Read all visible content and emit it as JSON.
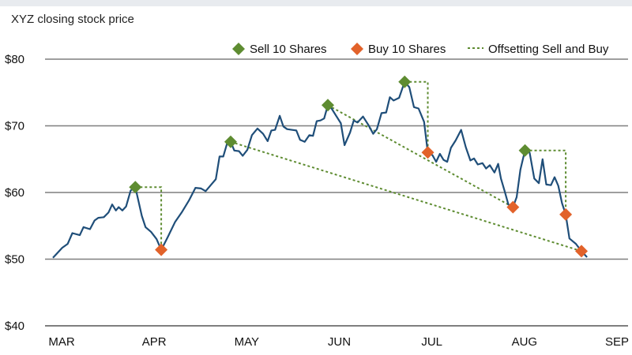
{
  "chart_data": {
    "type": "line",
    "title": "XYZ closing stock price",
    "xlabel": "",
    "ylabel": "",
    "ylim": [
      40,
      80
    ],
    "y_ticks": [
      40,
      50,
      60,
      70,
      80
    ],
    "y_tick_labels": [
      "$40",
      "$50",
      "$60",
      "$70",
      "$80"
    ],
    "x_range": [
      0,
      6
    ],
    "month_ticks": [
      {
        "label": "MAR",
        "x": 0
      },
      {
        "label": "APR",
        "x": 1
      },
      {
        "label": "MAY",
        "x": 2
      },
      {
        "label": "JUN",
        "x": 3
      },
      {
        "label": "JUL",
        "x": 4
      },
      {
        "label": "AUG",
        "x": 5
      },
      {
        "label": "SEP",
        "x": 6
      }
    ],
    "grid": true,
    "legend_position": "top-right",
    "colors": {
      "price": "#1f4e79",
      "sell": "#5e8c31",
      "buy": "#e2622a",
      "offset": "#5e8c31",
      "grid": "#7f7f7f",
      "topbar": "#e8ebef"
    },
    "legend": [
      {
        "key": "sell",
        "label": "Sell 10 Shares",
        "marker": "diamond"
      },
      {
        "key": "buy",
        "label": "Buy 10 Shares",
        "marker": "diamond"
      },
      {
        "key": "offset",
        "label": "Offsetting Sell and Buy",
        "marker": "dashed-line"
      }
    ],
    "series": [
      {
        "name": "XYZ closing stock price",
        "points": [
          [
            0.0,
            50.2
          ],
          [
            0.04,
            50.8
          ],
          [
            0.1,
            51.7
          ],
          [
            0.16,
            52.3
          ],
          [
            0.21,
            53.9
          ],
          [
            0.29,
            53.6
          ],
          [
            0.33,
            54.8
          ],
          [
            0.4,
            54.5
          ],
          [
            0.45,
            55.8
          ],
          [
            0.49,
            56.2
          ],
          [
            0.55,
            56.3
          ],
          [
            0.6,
            57.0
          ],
          [
            0.64,
            58.2
          ],
          [
            0.68,
            57.3
          ],
          [
            0.71,
            57.8
          ],
          [
            0.75,
            57.3
          ],
          [
            0.79,
            57.9
          ],
          [
            0.84,
            60.3
          ],
          [
            0.89,
            60.8
          ],
          [
            0.96,
            56.5
          ],
          [
            1.0,
            54.8
          ],
          [
            1.06,
            54.1
          ],
          [
            1.12,
            53.0
          ],
          [
            1.17,
            51.4
          ],
          [
            1.24,
            53.3
          ],
          [
            1.32,
            55.6
          ],
          [
            1.39,
            57.0
          ],
          [
            1.47,
            58.8
          ],
          [
            1.54,
            60.7
          ],
          [
            1.6,
            60.6
          ],
          [
            1.65,
            60.2
          ],
          [
            1.71,
            61.2
          ],
          [
            1.76,
            62.0
          ],
          [
            1.8,
            65.4
          ],
          [
            1.84,
            65.4
          ],
          [
            1.88,
            67.3
          ],
          [
            1.92,
            67.6
          ],
          [
            1.96,
            66.3
          ],
          [
            2.01,
            66.2
          ],
          [
            2.05,
            65.5
          ],
          [
            2.1,
            66.4
          ],
          [
            2.15,
            68.6
          ],
          [
            2.21,
            69.6
          ],
          [
            2.27,
            68.8
          ],
          [
            2.32,
            67.7
          ],
          [
            2.36,
            69.3
          ],
          [
            2.4,
            69.4
          ],
          [
            2.45,
            71.5
          ],
          [
            2.49,
            69.9
          ],
          [
            2.53,
            69.5
          ],
          [
            2.58,
            69.4
          ],
          [
            2.63,
            69.3
          ],
          [
            2.67,
            67.9
          ],
          [
            2.72,
            67.6
          ],
          [
            2.77,
            68.6
          ],
          [
            2.81,
            68.5
          ],
          [
            2.85,
            70.7
          ],
          [
            2.89,
            70.8
          ],
          [
            2.93,
            71.1
          ],
          [
            2.97,
            73.1
          ],
          [
            3.01,
            72.6
          ],
          [
            3.06,
            71.5
          ],
          [
            3.11,
            70.4
          ],
          [
            3.15,
            67.1
          ],
          [
            3.21,
            69.0
          ],
          [
            3.25,
            70.8
          ],
          [
            3.29,
            70.5
          ],
          [
            3.35,
            71.4
          ],
          [
            3.41,
            70.1
          ],
          [
            3.46,
            68.8
          ],
          [
            3.5,
            69.5
          ],
          [
            3.55,
            71.9
          ],
          [
            3.6,
            72.0
          ],
          [
            3.64,
            74.3
          ],
          [
            3.68,
            73.8
          ],
          [
            3.74,
            74.2
          ],
          [
            3.8,
            76.6
          ],
          [
            3.85,
            75.8
          ],
          [
            3.9,
            72.8
          ],
          [
            3.95,
            72.6
          ],
          [
            4.01,
            70.6
          ],
          [
            4.05,
            66.0
          ],
          [
            4.1,
            65.6
          ],
          [
            4.14,
            64.6
          ],
          [
            4.18,
            65.8
          ],
          [
            4.22,
            64.9
          ],
          [
            4.26,
            64.6
          ],
          [
            4.3,
            66.7
          ],
          [
            4.35,
            67.8
          ],
          [
            4.41,
            69.4
          ],
          [
            4.46,
            66.8
          ],
          [
            4.51,
            64.8
          ],
          [
            4.55,
            65.1
          ],
          [
            4.59,
            64.2
          ],
          [
            4.64,
            64.4
          ],
          [
            4.68,
            63.6
          ],
          [
            4.72,
            64.1
          ],
          [
            4.77,
            63.0
          ],
          [
            4.81,
            64.3
          ],
          [
            4.84,
            62.1
          ],
          [
            4.88,
            60.2
          ],
          [
            4.92,
            58.2
          ],
          [
            4.97,
            57.8
          ],
          [
            5.01,
            59.3
          ],
          [
            5.05,
            63.4
          ],
          [
            5.1,
            66.3
          ],
          [
            5.15,
            66.0
          ],
          [
            5.2,
            62.1
          ],
          [
            5.25,
            61.4
          ],
          [
            5.29,
            65.0
          ],
          [
            5.33,
            61.2
          ],
          [
            5.38,
            61.1
          ],
          [
            5.42,
            62.3
          ],
          [
            5.46,
            61.0
          ],
          [
            5.5,
            58.4
          ],
          [
            5.54,
            56.7
          ],
          [
            5.58,
            53.1
          ],
          [
            5.65,
            52.3
          ],
          [
            5.71,
            51.2
          ],
          [
            5.77,
            50.3
          ]
        ]
      }
    ],
    "sells": [
      [
        0.89,
        60.8
      ],
      [
        1.92,
        67.6
      ],
      [
        2.97,
        73.1
      ],
      [
        3.8,
        76.6
      ],
      [
        5.1,
        66.3
      ]
    ],
    "buys": [
      [
        1.17,
        51.4
      ],
      [
        4.05,
        66.0
      ],
      [
        4.97,
        57.8
      ],
      [
        5.54,
        56.7
      ],
      [
        5.71,
        51.2
      ]
    ],
    "offset_pairs": [
      {
        "from": [
          0.89,
          60.8
        ],
        "to": [
          1.17,
          51.4
        ],
        "style": "step"
      },
      {
        "from": [
          1.92,
          67.6
        ],
        "to": [
          5.71,
          51.2
        ],
        "style": "diagonal"
      },
      {
        "from": [
          2.97,
          73.1
        ],
        "to": [
          4.97,
          57.8
        ],
        "style": "diagonal"
      },
      {
        "from": [
          3.8,
          76.6
        ],
        "to": [
          4.05,
          66.0
        ],
        "style": "step"
      },
      {
        "from": [
          5.1,
          66.3
        ],
        "to": [
          5.54,
          56.7
        ],
        "style": "step"
      }
    ]
  }
}
